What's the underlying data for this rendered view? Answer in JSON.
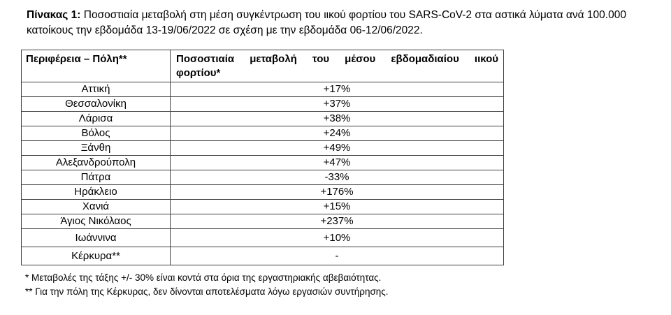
{
  "title": {
    "prefix": "Πίνακας 1:",
    "line1_rest": " Ποσοστιαία μεταβολή στη μέση συγκέντρωση του ιικού φορτίου του SARS-CoV-2 στα αστικά λύματα ανά 100.000",
    "line2": "κατοίκους την εβδομάδα 13-19/06/2022 σε σχέση με την εβδομάδα 06-12/06/2022."
  },
  "table": {
    "header": {
      "col1": "Περιφέρεια – Πόλη**",
      "col2_line1": "Ποσοστιαία μεταβολή του μέσου εβδομαδιαίου ιικού",
      "col2_line2": "φορτίου*"
    },
    "rows": [
      {
        "region": "Αττική",
        "change": "+17%"
      },
      {
        "region": "Θεσσαλονίκη",
        "change": "+37%"
      },
      {
        "region": "Λάρισα",
        "change": "+38%"
      },
      {
        "region": "Βόλος",
        "change": "+24%"
      },
      {
        "region": "Ξάνθη",
        "change": "+49%"
      },
      {
        "region": "Αλεξανδρούπολη",
        "change": "+47%"
      },
      {
        "region": "Πάτρα",
        "change": "-33%"
      },
      {
        "region": "Ηράκλειο",
        "change": "+176%"
      },
      {
        "region": "Χανιά",
        "change": "+15%"
      },
      {
        "region": "Άγιος Νικόλαος",
        "change": "+237%"
      },
      {
        "region": "Ιωάννινα",
        "change": "+10%"
      },
      {
        "region": "Κέρκυρα**",
        "change": "-"
      }
    ]
  },
  "footnotes": [
    "* Μεταβολές της τάξης +/- 30% είναι κοντά στα όρια της εργαστηριακής αβεβαιότητας.",
    "** Για την πόλη της Κέρκυρας, δεν δίνονται αποτελέσματα λόγω εργασιών συντήρησης."
  ],
  "colors": {
    "text": "#000000",
    "table_border": "#3f3f3f",
    "background": "#ffffff"
  }
}
